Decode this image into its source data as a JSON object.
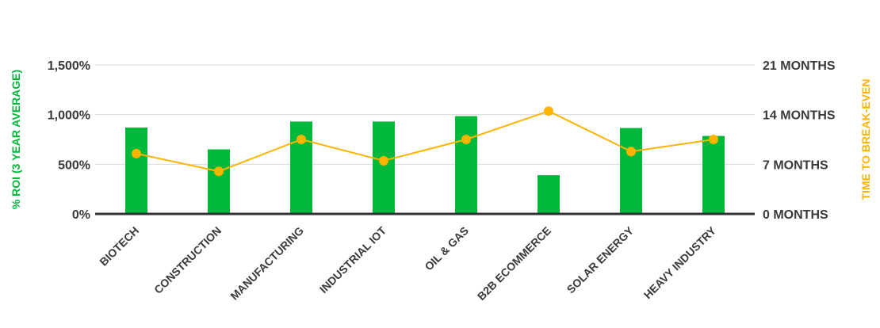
{
  "chart_data": {
    "type": "bar",
    "categories": [
      "BIOTECH",
      "CONSTRUCTION",
      "MANUFACTURING",
      "INDUSTRIAL IOT",
      "OIL & GAS",
      "B2B ECOMMERCE",
      "SOLAR ENERGY",
      "HEAVY INDUSTRY"
    ],
    "series": [
      {
        "type": "bar",
        "axis": "left",
        "color": "#00b93a",
        "values": [
          870,
          650,
          930,
          930,
          985,
          390,
          865,
          785
        ]
      },
      {
        "type": "line",
        "axis": "right",
        "color": "#ffb400",
        "values": [
          8.5,
          6.0,
          10.5,
          7.5,
          10.5,
          14.5,
          8.8,
          10.5
        ]
      }
    ],
    "y_left": {
      "label": "% ROI (3 YEAR AVERAGE)",
      "label_color": "#00b93a",
      "min": 0,
      "max": 1500,
      "ticks": [
        0,
        500,
        1000,
        1500
      ],
      "tick_labels": [
        "0%",
        "500%",
        "1,000%",
        "1,500%"
      ]
    },
    "y_right": {
      "label": "TIME TO BREAK-EVEN",
      "label_color": "#ffb400",
      "min": 0,
      "max": 21,
      "ticks": [
        0,
        7,
        14,
        21
      ],
      "tick_labels": [
        "0 MONTHS",
        "7 MONTHS",
        "14 MONTHS",
        "21 MONTHS"
      ]
    },
    "grid": true,
    "legend": "none"
  }
}
